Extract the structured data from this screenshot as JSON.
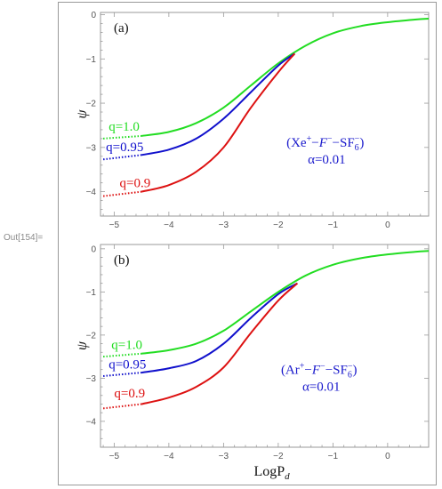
{
  "cell_label": "Out[154]=",
  "chart_data": [
    {
      "type": "line",
      "panel_label": "(a)",
      "ylabel": "ψ",
      "xlim": [
        -5.25,
        0.75
      ],
      "ylim": [
        -4.55,
        0.05
      ],
      "xticks": [
        -5,
        -4,
        -3,
        -2,
        -1,
        0
      ],
      "yticks": [
        0,
        -1,
        -2,
        -3,
        -4
      ],
      "annotation": {
        "line1": "(Xe+−F−−SF6−)",
        "line2": "α=0.01"
      },
      "series": [
        {
          "name": "q=1.0",
          "color": "#22dd22",
          "x": [
            -5.2,
            -4.5,
            -4.0,
            -3.5,
            -3.0,
            -2.5,
            -2.0,
            -1.5,
            -1.0,
            -0.5,
            0.0,
            0.5,
            0.75
          ],
          "y": [
            -2.8,
            -2.74,
            -2.65,
            -2.45,
            -2.1,
            -1.6,
            -1.1,
            -0.7,
            -0.42,
            -0.26,
            -0.17,
            -0.11,
            -0.09
          ]
        },
        {
          "name": "q=0.95",
          "color": "#1010cc",
          "x": [
            -5.2,
            -4.5,
            -4.0,
            -3.5,
            -3.0,
            -2.5,
            -2.0,
            -1.7
          ],
          "y": [
            -3.27,
            -3.17,
            -3.05,
            -2.8,
            -2.35,
            -1.75,
            -1.15,
            -0.88
          ]
        },
        {
          "name": "q=0.9",
          "color": "#dd1111",
          "x": [
            -5.2,
            -4.5,
            -4.0,
            -3.5,
            -3.0,
            -2.5,
            -2.0,
            -1.7
          ],
          "y": [
            -4.1,
            -4.0,
            -3.85,
            -3.55,
            -3.0,
            -2.1,
            -1.3,
            -0.88
          ]
        }
      ]
    },
    {
      "type": "line",
      "panel_label": "(b)",
      "ylabel": "ψ",
      "xlabel": "LogP",
      "xlabel_sub": "d",
      "xlim": [
        -5.25,
        0.75
      ],
      "ylim": [
        -4.6,
        0.1
      ],
      "xticks": [
        -5,
        -4,
        -3,
        -2,
        -1,
        0
      ],
      "yticks": [
        0,
        -1,
        -2,
        -3,
        -4
      ],
      "annotation": {
        "line1": "(Ar+−F−−SF6−)",
        "line2": "α=0.01"
      },
      "series": [
        {
          "name": "q=1.0",
          "color": "#22dd22",
          "x": [
            -5.2,
            -4.5,
            -4.0,
            -3.5,
            -3.0,
            -2.5,
            -2.0,
            -1.5,
            -1.0,
            -0.5,
            0.0,
            0.5,
            0.75
          ],
          "y": [
            -2.5,
            -2.43,
            -2.35,
            -2.2,
            -1.9,
            -1.45,
            -1.0,
            -0.62,
            -0.37,
            -0.22,
            -0.13,
            -0.07,
            -0.05
          ]
        },
        {
          "name": "q=0.95",
          "color": "#1010cc",
          "x": [
            -5.2,
            -4.5,
            -4.0,
            -3.5,
            -3.0,
            -2.5,
            -2.0,
            -1.65
          ],
          "y": [
            -2.95,
            -2.87,
            -2.77,
            -2.6,
            -2.2,
            -1.6,
            -1.05,
            -0.8
          ]
        },
        {
          "name": "q=0.9",
          "color": "#dd1111",
          "x": [
            -5.2,
            -4.5,
            -4.0,
            -3.5,
            -3.0,
            -2.5,
            -2.0,
            -1.65
          ],
          "y": [
            -3.7,
            -3.6,
            -3.45,
            -3.2,
            -2.75,
            -1.95,
            -1.2,
            -0.8
          ]
        }
      ]
    }
  ]
}
